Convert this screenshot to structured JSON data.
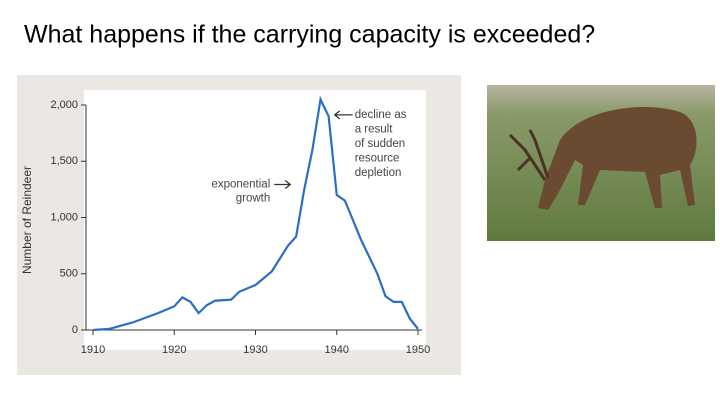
{
  "slide": {
    "title": "What happens if the carrying capacity is exceeded?"
  },
  "chart_data": {
    "type": "line",
    "y_label": "Number of Reindeer",
    "x": [
      1910,
      1912,
      1915,
      1918,
      1920,
      1921,
      1922,
      1923,
      1924,
      1925,
      1927,
      1928,
      1930,
      1932,
      1934,
      1935,
      1936,
      1937,
      1938,
      1939,
      1940,
      1941,
      1943,
      1945,
      1946,
      1947,
      1948,
      1949,
      1950
    ],
    "values": [
      0,
      10,
      70,
      150,
      210,
      290,
      250,
      150,
      220,
      260,
      270,
      340,
      400,
      520,
      750,
      830,
      1250,
      1600,
      2050,
      1900,
      1200,
      1150,
      800,
      500,
      300,
      250,
      250,
      100,
      10
    ],
    "color": "#2a6fc4",
    "xlim": [
      1910,
      1950
    ],
    "xticks": [
      1910,
      1920,
      1930,
      1940,
      1950
    ],
    "ylim": [
      0,
      2000
    ],
    "yticks": [
      0,
      500,
      {
        "value": 1000,
        "label": "1,000"
      },
      {
        "value": 1500,
        "label": "1,500"
      },
      {
        "value": 2000,
        "label": "2,000"
      }
    ],
    "annotations": [
      {
        "lines": [
          "exponential",
          "growth"
        ],
        "x": 1936,
        "y": 1400
      },
      {
        "lines": [
          "decline as",
          "a result",
          "of sudden",
          "resource",
          "depletion"
        ],
        "x": 1939.5,
        "y": 1850
      }
    ]
  }
}
